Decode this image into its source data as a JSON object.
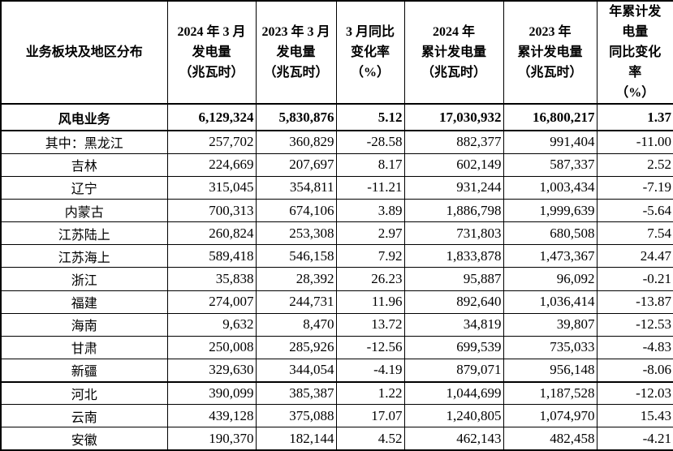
{
  "table": {
    "title_semantic": "风电业务发电量统计表",
    "columns": [
      {
        "id": "region",
        "label": "业务板块及地区分布"
      },
      {
        "id": "gen_2024_mar",
        "label": "2024 年 3 月\n发电量\n（兆瓦时）"
      },
      {
        "id": "gen_2023_mar",
        "label": "2023 年 3 月\n发电量\n（兆瓦时）"
      },
      {
        "id": "mar_yoy",
        "label": "3 月同比\n变化率\n（%）"
      },
      {
        "id": "cum_2024",
        "label": "2024 年\n累计发电量\n（兆瓦时）"
      },
      {
        "id": "cum_2023",
        "label": "2023 年\n累计发电量\n（兆瓦时）"
      },
      {
        "id": "cum_yoy",
        "label": "年累计发\n电量\n同比变化\n率\n（%）"
      }
    ],
    "rows": [
      {
        "region": "风电业务",
        "values": [
          "6,129,324",
          "5,830,876",
          "5.12",
          "17,030,932",
          "16,800,217",
          "1.37"
        ],
        "emphasis": true
      },
      {
        "region": "其中：黑龙江",
        "values": [
          "257,702",
          "360,829",
          "-28.58",
          "882,377",
          "991,404",
          "-11.00"
        ]
      },
      {
        "region": "吉林",
        "values": [
          "224,669",
          "207,697",
          "8.17",
          "602,149",
          "587,337",
          "2.52"
        ]
      },
      {
        "region": "辽宁",
        "values": [
          "315,045",
          "354,811",
          "-11.21",
          "931,244",
          "1,003,434",
          "-7.19"
        ]
      },
      {
        "region": "内蒙古",
        "values": [
          "700,313",
          "674,106",
          "3.89",
          "1,886,798",
          "1,999,639",
          "-5.64"
        ]
      },
      {
        "region": "江苏陆上",
        "values": [
          "260,824",
          "253,308",
          "2.97",
          "731,803",
          "680,508",
          "7.54"
        ]
      },
      {
        "region": "江苏海上",
        "values": [
          "589,418",
          "546,158",
          "7.92",
          "1,833,878",
          "1,473,367",
          "24.47"
        ]
      },
      {
        "region": "浙江",
        "values": [
          "35,838",
          "28,392",
          "26.23",
          "95,887",
          "96,092",
          "-0.21"
        ]
      },
      {
        "region": "福建",
        "values": [
          "274,007",
          "244,731",
          "11.96",
          "892,640",
          "1,036,414",
          "-13.87"
        ]
      },
      {
        "region": "海南",
        "values": [
          "9,632",
          "8,470",
          "13.72",
          "34,819",
          "39,807",
          "-12.53"
        ]
      },
      {
        "region": "甘肃",
        "values": [
          "250,008",
          "285,926",
          "-12.56",
          "699,539",
          "735,033",
          "-4.83"
        ]
      },
      {
        "region": "新疆",
        "values": [
          "329,630",
          "344,054",
          "-4.19",
          "879,071",
          "956,148",
          "-8.06"
        ]
      },
      {
        "region": "河北",
        "values": [
          "390,099",
          "385,387",
          "1.22",
          "1,044,699",
          "1,187,528",
          "-12.03"
        ],
        "section_break_before": true
      },
      {
        "region": "云南",
        "values": [
          "439,128",
          "375,088",
          "17.07",
          "1,240,805",
          "1,074,970",
          "15.43"
        ]
      },
      {
        "region": "安徽",
        "values": [
          "190,370",
          "182,144",
          "4.52",
          "462,143",
          "482,458",
          "-4.21"
        ]
      }
    ]
  }
}
